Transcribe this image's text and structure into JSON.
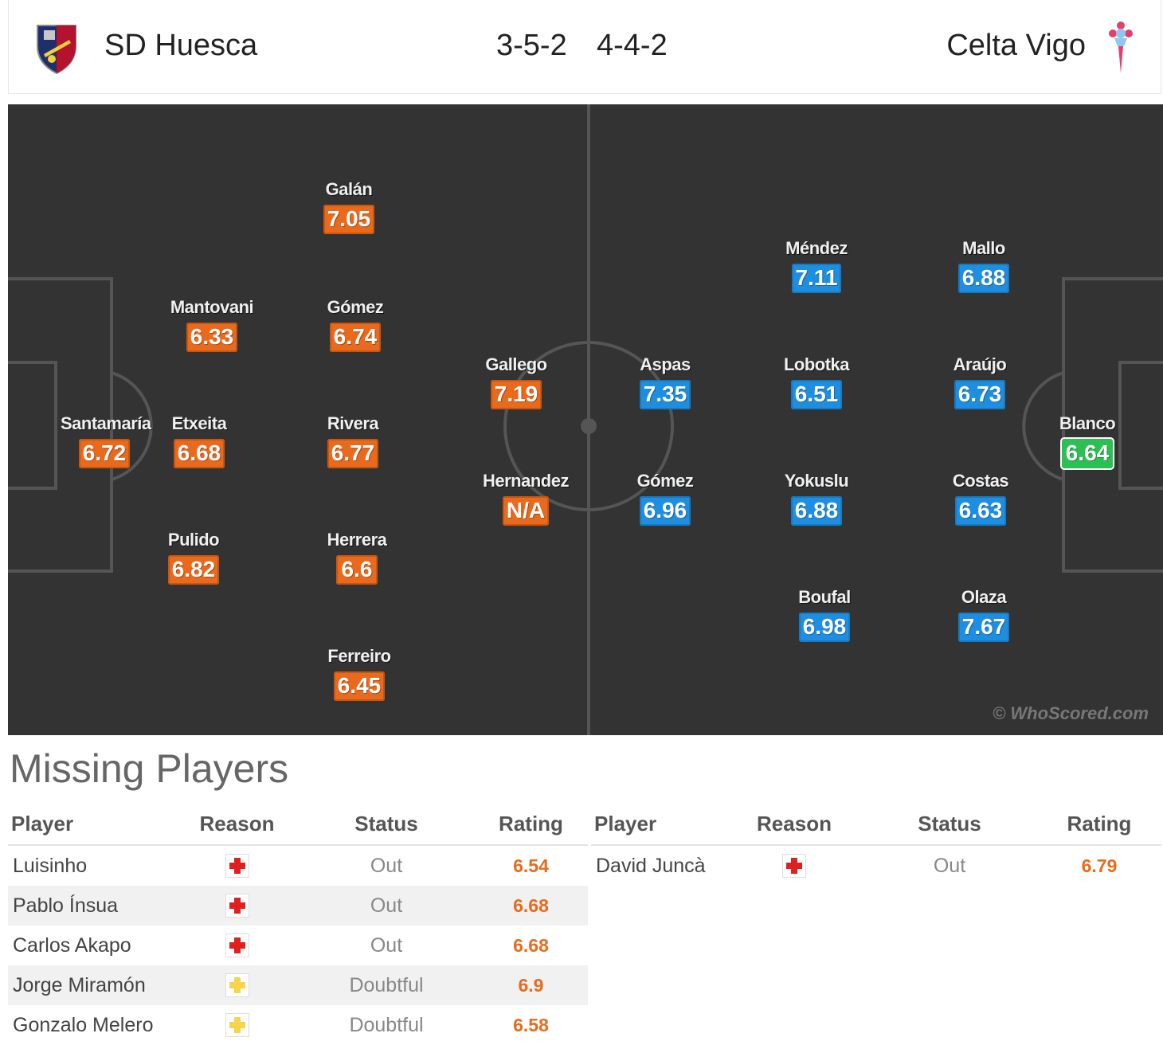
{
  "header": {
    "home_team": "SD Huesca",
    "away_team": "Celta Vigo",
    "home_formation": "3-5-2",
    "away_formation": "4-4-2",
    "home_crest_icon": "huesca-crest-icon",
    "away_crest_icon": "celta-crest-icon"
  },
  "colors": {
    "home_rating": "#e96a1c",
    "away_rating": "#1e8fe0",
    "best_rating": "#2bbf54",
    "pitch": "#333333"
  },
  "pitch": {
    "watermark": "© WhoScored.com",
    "home_players": [
      {
        "name": "Santamaría",
        "rating": "6.72"
      },
      {
        "name": "Mantovani",
        "rating": "6.33"
      },
      {
        "name": "Etxeita",
        "rating": "6.68"
      },
      {
        "name": "Pulido",
        "rating": "6.82"
      },
      {
        "name": "Galán",
        "rating": "7.05"
      },
      {
        "name": "Gómez",
        "rating": "6.74"
      },
      {
        "name": "Rivera",
        "rating": "6.77"
      },
      {
        "name": "Herrera",
        "rating": "6.6"
      },
      {
        "name": "Ferreiro",
        "rating": "6.45"
      },
      {
        "name": "Gallego",
        "rating": "7.19"
      },
      {
        "name": "Hernandez",
        "rating": "N/A"
      }
    ],
    "away_players": [
      {
        "name": "Aspas",
        "rating": "7.35"
      },
      {
        "name": "Gómez",
        "rating": "6.96"
      },
      {
        "name": "Méndez",
        "rating": "7.11"
      },
      {
        "name": "Lobotka",
        "rating": "6.51"
      },
      {
        "name": "Yokuslu",
        "rating": "6.88"
      },
      {
        "name": "Boufal",
        "rating": "6.98"
      },
      {
        "name": "Mallo",
        "rating": "6.88"
      },
      {
        "name": "Araújo",
        "rating": "6.73"
      },
      {
        "name": "Costas",
        "rating": "6.63"
      },
      {
        "name": "Olaza",
        "rating": "7.67"
      },
      {
        "name": "Blanco",
        "rating": "6.64"
      }
    ]
  },
  "missing": {
    "title": "Missing Players",
    "columns": [
      "Player",
      "Reason",
      "Status",
      "Rating"
    ],
    "home": [
      {
        "player": "Luisinho",
        "reason": "injury-icon",
        "status": "Out",
        "rating": "6.54"
      },
      {
        "player": "Pablo Ínsua",
        "reason": "injury-icon",
        "status": "Out",
        "rating": "6.68"
      },
      {
        "player": "Carlos Akapo",
        "reason": "injury-icon",
        "status": "Out",
        "rating": "6.68"
      },
      {
        "player": "Jorge Miramón",
        "reason": "doubtful-icon",
        "status": "Doubtful",
        "rating": "6.9"
      },
      {
        "player": "Gonzalo Melero",
        "reason": "doubtful-icon",
        "status": "Doubtful",
        "rating": "6.58"
      }
    ],
    "away": [
      {
        "player": "David Juncà",
        "reason": "injury-icon",
        "status": "Out",
        "rating": "6.79"
      }
    ]
  }
}
